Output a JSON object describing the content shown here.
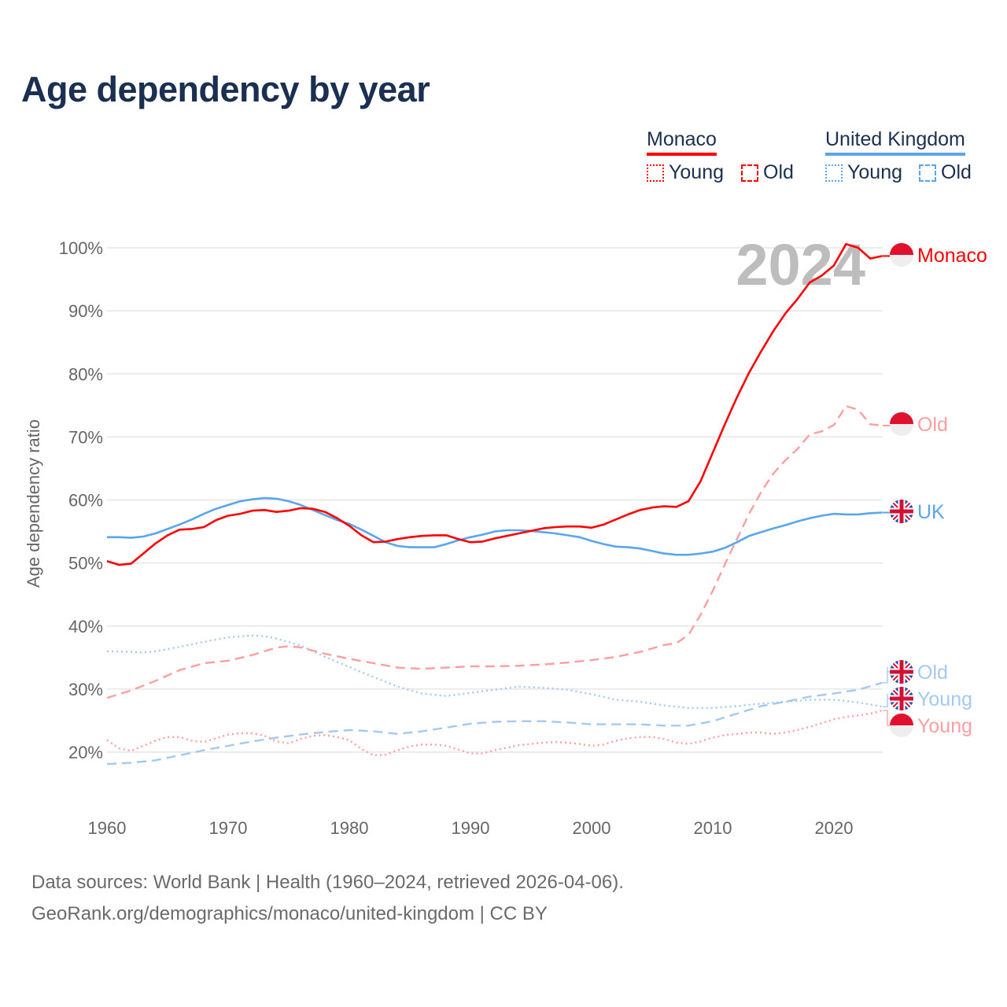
{
  "title": "Age dependency by year",
  "legend": {
    "monaco": {
      "label": "Monaco",
      "young": "Young",
      "old": "Old",
      "color": "#ff0000"
    },
    "uk": {
      "label": "United Kingdom",
      "young": "Young",
      "old": "Old",
      "color": "#5aa5ec"
    }
  },
  "watermark_year": "2024",
  "footer": {
    "line1": "Data sources: World Bank | Health (1960–2024, retrieved 2026-04-06).",
    "line2": "GeoRank.org/demographics/monaco/united-kingdom | CC BY"
  },
  "chart_data": {
    "type": "line",
    "title": "Age dependency by year",
    "xlabel": "",
    "ylabel": "Age dependency ratio",
    "xlim": [
      1960,
      2024
    ],
    "ylim": [
      10,
      105
    ],
    "x_ticks": [
      1960,
      1970,
      1980,
      1990,
      2000,
      2010,
      2020
    ],
    "y_ticks": [
      "20%",
      "30%",
      "40%",
      "50%",
      "60%",
      "70%",
      "80%",
      "90%",
      "100%"
    ],
    "y_tick_values": [
      20,
      30,
      40,
      50,
      60,
      70,
      80,
      90,
      100
    ],
    "grid": true,
    "series": [
      {
        "name": "Monaco",
        "end_label": "Monaco",
        "flag": "monaco",
        "color": "#ff0000",
        "style": "solid",
        "x": [
          1960,
          1961,
          1962,
          1963,
          1964,
          1965,
          1966,
          1967,
          1968,
          1969,
          1970,
          1971,
          1972,
          1973,
          1974,
          1975,
          1976,
          1977,
          1978,
          1979,
          1980,
          1981,
          1982,
          1983,
          1984,
          1985,
          1986,
          1987,
          1988,
          1989,
          1990,
          1991,
          1992,
          1993,
          1994,
          1995,
          1996,
          1997,
          1998,
          1999,
          2000,
          2001,
          2002,
          2003,
          2004,
          2005,
          2006,
          2007,
          2008,
          2009,
          2010,
          2011,
          2012,
          2013,
          2014,
          2015,
          2016,
          2017,
          2018,
          2019,
          2020,
          2021,
          2022,
          2023,
          2024
        ],
        "y": [
          50.3,
          49.7,
          49.9,
          51.5,
          53.1,
          54.4,
          55.3,
          55.4,
          55.7,
          56.8,
          57.5,
          57.8,
          58.3,
          58.4,
          58.1,
          58.3,
          58.7,
          58.6,
          58.1,
          57.1,
          55.9,
          54.4,
          53.3,
          53.4,
          53.8,
          54.1,
          54.3,
          54.4,
          54.4,
          53.8,
          53.3,
          53.4,
          53.9,
          54.3,
          54.7,
          55.1,
          55.5,
          55.7,
          55.8,
          55.8,
          55.6,
          56.1,
          56.9,
          57.7,
          58.4,
          58.8,
          59.0,
          58.9,
          59.8,
          63.0,
          67.5,
          72.0,
          76.3,
          80.2,
          83.6,
          86.8,
          89.6,
          91.9,
          94.5,
          95.6,
          97.2,
          100.6,
          100.0,
          98.3,
          98.7
        ]
      },
      {
        "name": "Monaco Old",
        "end_label": "Old",
        "flag": "monaco",
        "color": "#ff9e9e",
        "style": "dashed",
        "x": [
          1960,
          1962,
          1964,
          1966,
          1968,
          1970,
          1972,
          1974,
          1975,
          1976,
          1978,
          1980,
          1982,
          1984,
          1986,
          1988,
          1990,
          1992,
          1994,
          1996,
          1998,
          2000,
          2002,
          2004,
          2006,
          2007,
          2008,
          2009,
          2010,
          2011,
          2012,
          2013,
          2014,
          2015,
          2016,
          2017,
          2018,
          2019,
          2020,
          2021,
          2022,
          2023,
          2024
        ],
        "y": [
          28.6,
          29.8,
          31.3,
          33.0,
          34.1,
          34.5,
          35.4,
          36.6,
          36.8,
          36.6,
          35.6,
          34.8,
          34.1,
          33.4,
          33.2,
          33.4,
          33.6,
          33.6,
          33.7,
          33.9,
          34.2,
          34.6,
          35.1,
          35.9,
          37.0,
          37.3,
          38.6,
          41.8,
          45.6,
          49.8,
          53.8,
          57.8,
          61.3,
          64.2,
          66.3,
          68.1,
          70.4,
          70.9,
          71.9,
          74.9,
          74.3,
          72.0,
          71.8
        ]
      },
      {
        "name": "United Kingdom",
        "end_label": "UK",
        "flag": "uk",
        "color": "#5aa5ec",
        "style": "solid",
        "x": [
          1960,
          1961,
          1962,
          1963,
          1964,
          1965,
          1966,
          1967,
          1968,
          1969,
          1970,
          1971,
          1972,
          1973,
          1974,
          1975,
          1976,
          1977,
          1978,
          1979,
          1980,
          1981,
          1982,
          1983,
          1984,
          1985,
          1986,
          1987,
          1988,
          1989,
          1990,
          1991,
          1992,
          1993,
          1994,
          1995,
          1996,
          1997,
          1998,
          1999,
          2000,
          2001,
          2002,
          2003,
          2004,
          2005,
          2006,
          2007,
          2008,
          2009,
          2010,
          2011,
          2012,
          2013,
          2014,
          2015,
          2016,
          2017,
          2018,
          2019,
          2020,
          2021,
          2022,
          2023,
          2024
        ],
        "y": [
          54.1,
          54.1,
          54.0,
          54.2,
          54.7,
          55.4,
          56.1,
          56.9,
          57.8,
          58.6,
          59.2,
          59.8,
          60.1,
          60.3,
          60.2,
          59.8,
          59.2,
          58.4,
          57.6,
          56.8,
          56.2,
          55.3,
          54.3,
          53.3,
          52.7,
          52.5,
          52.5,
          52.5,
          53.0,
          53.6,
          54.1,
          54.5,
          55.0,
          55.2,
          55.2,
          55.1,
          54.9,
          54.7,
          54.4,
          54.1,
          53.5,
          53.0,
          52.6,
          52.5,
          52.3,
          51.9,
          51.5,
          51.3,
          51.3,
          51.5,
          51.8,
          52.4,
          53.3,
          54.3,
          54.9,
          55.5,
          56.0,
          56.6,
          57.1,
          57.5,
          57.8,
          57.7,
          57.7,
          57.9,
          58.0
        ]
      },
      {
        "name": "United Kingdom Old",
        "end_label": "Old",
        "flag": "uk",
        "color": "#a3c9f1",
        "style": "dashed",
        "x": [
          1960,
          1962,
          1964,
          1966,
          1968,
          1970,
          1972,
          1974,
          1976,
          1978,
          1980,
          1982,
          1984,
          1986,
          1988,
          1990,
          1992,
          1994,
          1996,
          1998,
          2000,
          2002,
          2004,
          2006,
          2008,
          2010,
          2012,
          2014,
          2016,
          2018,
          2020,
          2022,
          2024
        ],
        "y": [
          18.1,
          18.3,
          18.7,
          19.5,
          20.3,
          21.0,
          21.7,
          22.3,
          22.8,
          23.2,
          23.5,
          23.3,
          22.9,
          23.3,
          23.9,
          24.5,
          24.8,
          24.9,
          24.9,
          24.7,
          24.4,
          24.4,
          24.4,
          24.2,
          24.2,
          24.9,
          26.1,
          27.3,
          28.0,
          28.8,
          29.3,
          29.9,
          31.0
        ]
      },
      {
        "name": "United Kingdom Young",
        "end_label": "Young",
        "flag": "uk",
        "color": "#a3c9f1",
        "style": "dotted",
        "x": [
          1960,
          1962,
          1963,
          1964,
          1966,
          1968,
          1970,
          1972,
          1973,
          1974,
          1976,
          1978,
          1980,
          1982,
          1984,
          1986,
          1988,
          1990,
          1992,
          1994,
          1996,
          1998,
          2000,
          2002,
          2004,
          2006,
          2008,
          2010,
          2012,
          2014,
          2016,
          2018,
          2020,
          2022,
          2024
        ],
        "y": [
          36.0,
          35.9,
          35.8,
          36.0,
          36.7,
          37.5,
          38.2,
          38.5,
          38.4,
          38.0,
          36.9,
          35.1,
          33.5,
          31.9,
          30.4,
          29.3,
          28.9,
          29.4,
          29.9,
          30.4,
          30.2,
          29.9,
          29.2,
          28.3,
          28.0,
          27.4,
          27.0,
          27.0,
          27.3,
          27.7,
          28.0,
          28.3,
          28.3,
          27.9,
          27.2
        ]
      },
      {
        "name": "Monaco Young",
        "end_label": "Young",
        "flag": "monaco",
        "color": "#ff9e9e",
        "style": "dotted",
        "x": [
          1960,
          1961,
          1962,
          1963,
          1964,
          1965,
          1966,
          1967,
          1968,
          1969,
          1970,
          1971,
          1972,
          1973,
          1974,
          1975,
          1976,
          1977,
          1978,
          1979,
          1980,
          1981,
          1982,
          1983,
          1984,
          1985,
          1986,
          1987,
          1988,
          1989,
          1990,
          1991,
          1992,
          1993,
          1994,
          1995,
          1996,
          1997,
          1998,
          1999,
          2000,
          2001,
          2002,
          2003,
          2004,
          2005,
          2006,
          2007,
          2008,
          2009,
          2010,
          2011,
          2012,
          2013,
          2014,
          2015,
          2016,
          2017,
          2018,
          2019,
          2020,
          2021,
          2022,
          2023,
          2024
        ],
        "y": [
          21.9,
          20.6,
          20.2,
          21.0,
          21.8,
          22.4,
          22.4,
          21.8,
          21.6,
          22.2,
          22.8,
          23.0,
          23.0,
          22.6,
          21.7,
          21.4,
          22.1,
          22.6,
          22.7,
          22.4,
          21.9,
          20.5,
          19.5,
          19.6,
          20.3,
          20.9,
          21.2,
          21.2,
          21.0,
          20.4,
          19.8,
          19.8,
          20.3,
          20.7,
          21.1,
          21.3,
          21.5,
          21.6,
          21.5,
          21.3,
          21.0,
          21.2,
          21.8,
          22.2,
          22.4,
          22.4,
          22.1,
          21.5,
          21.3,
          21.7,
          22.3,
          22.7,
          22.9,
          23.1,
          23.1,
          22.9,
          23.1,
          23.5,
          24.0,
          24.6,
          25.2,
          25.6,
          25.8,
          26.1,
          26.6
        ]
      }
    ]
  }
}
